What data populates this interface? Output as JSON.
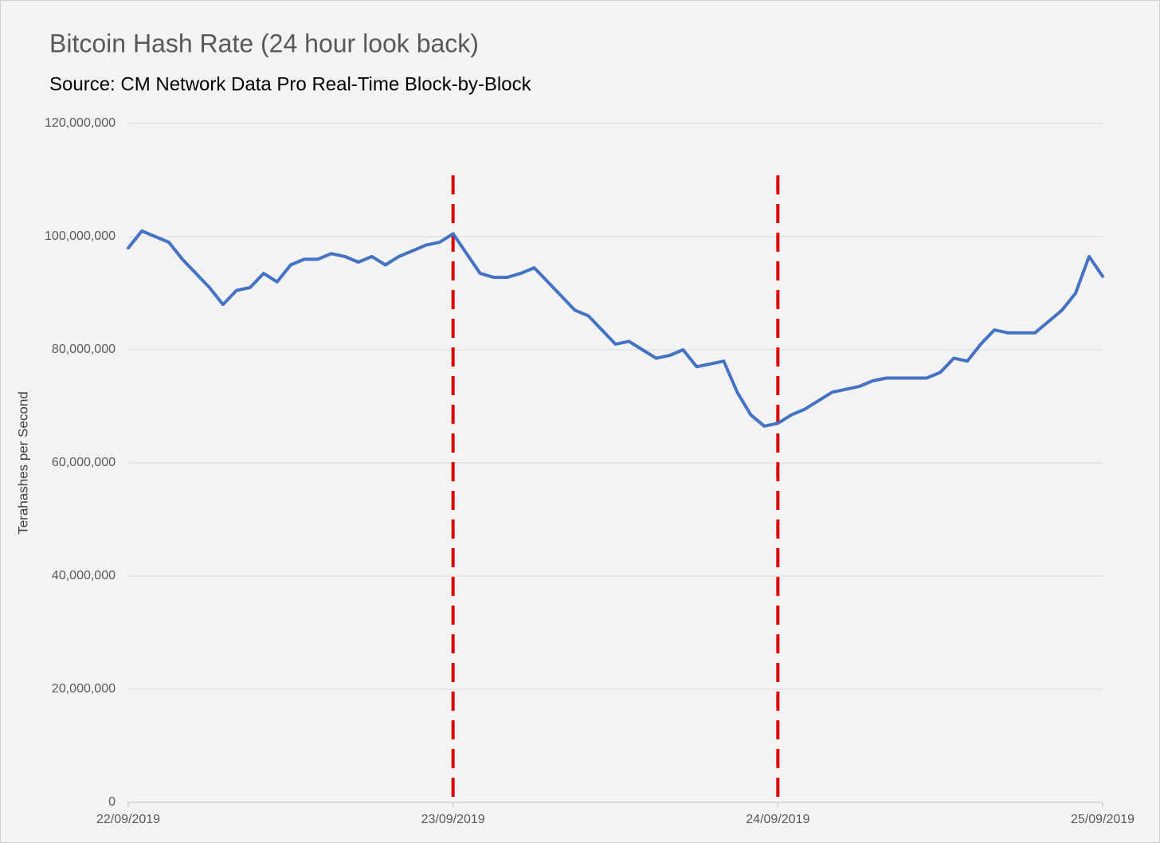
{
  "chart_data": {
    "type": "line",
    "title": "Bitcoin Hash Rate (24 hour look back)",
    "subtitle": "Source: CM Network Data Pro Real-Time Block-by-Block",
    "y_label": "Terahashes per Second",
    "categories": [
      "22/09/2019",
      null,
      null,
      null,
      null,
      null,
      null,
      null,
      null,
      null,
      null,
      null,
      null,
      null,
      null,
      null,
      null,
      null,
      null,
      null,
      null,
      null,
      null,
      null,
      "23/09/2019",
      null,
      null,
      null,
      null,
      null,
      null,
      null,
      null,
      null,
      null,
      null,
      null,
      null,
      null,
      null,
      null,
      null,
      null,
      null,
      null,
      null,
      null,
      null,
      "24/09/2019",
      null,
      null,
      null,
      null,
      null,
      null,
      null,
      null,
      null,
      null,
      null,
      null,
      null,
      null,
      null,
      null,
      null,
      null,
      null,
      null,
      null,
      null,
      null,
      "25/09/2019"
    ],
    "values": [
      98000000,
      101000000,
      100000000,
      99000000,
      96000000,
      93500000,
      91000000,
      88000000,
      90500000,
      91000000,
      93500000,
      92000000,
      95000000,
      96000000,
      96000000,
      97000000,
      96500000,
      95500000,
      96500000,
      95000000,
      96500000,
      97500000,
      98500000,
      99000000,
      100500000,
      97000000,
      93500000,
      92800000,
      92800000,
      93500000,
      94500000,
      92000000,
      89500000,
      87000000,
      86000000,
      83500000,
      81000000,
      81500000,
      80000000,
      78500000,
      79000000,
      80000000,
      77000000,
      77500000,
      78000000,
      72500000,
      68500000,
      66500000,
      67000000,
      68500000,
      69500000,
      71000000,
      72500000,
      73000000,
      73500000,
      74500000,
      75000000,
      75000000,
      75000000,
      75000000,
      76000000,
      78500000,
      78000000,
      81000000,
      83500000,
      83000000,
      83000000,
      83000000,
      85000000,
      87000000,
      90000000,
      96500000,
      93000000
    ],
    "color": "#4472c4",
    "divider_color": "#e00000",
    "ylim": [
      0,
      120000000
    ],
    "yticks": [
      0,
      {
        "value": 20000000,
        "label": "20,000,000"
      },
      {
        "value": 40000000,
        "label": "40,000,000"
      },
      {
        "value": 60000000,
        "label": "60,000,000"
      },
      {
        "value": 80000000,
        "label": "80,000,000"
      },
      {
        "value": 100000000,
        "label": "100,000,000"
      },
      {
        "value": 120000000,
        "label": "120,000,000"
      }
    ],
    "grid": true
  }
}
